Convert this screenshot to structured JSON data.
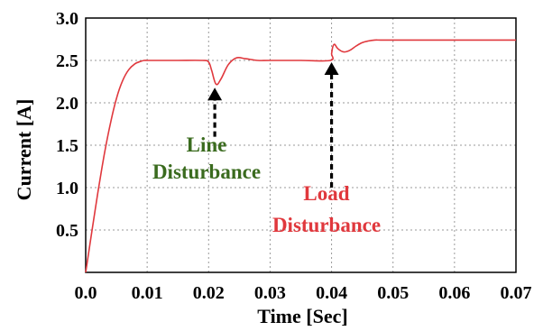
{
  "chart_data": {
    "type": "line",
    "xlabel": "Time [Sec]",
    "ylabel": "Current [A]",
    "xlim": [
      0,
      0.07
    ],
    "ylim": [
      0,
      3.0
    ],
    "xticks": [
      "0.0",
      "0.01",
      "0.02",
      "0.03",
      "0.04",
      "0.05",
      "0.06",
      "0.07"
    ],
    "yticks": [
      "0.5",
      "1.0",
      "1.5",
      "2.0",
      "2.5",
      "3.0"
    ],
    "grid": true,
    "line_color": "#e0383d",
    "series": [
      {
        "x": [
          0,
          0.001,
          0.002,
          0.003,
          0.004,
          0.005,
          0.006,
          0.007,
          0.008,
          0.009,
          0.0095,
          0.01,
          0.011,
          0.012,
          0.015,
          0.019,
          0.02,
          0.0205,
          0.0212,
          0.022,
          0.0232,
          0.0245,
          0.026,
          0.028,
          0.03,
          0.035,
          0.0398,
          0.04,
          0.0402,
          0.0405,
          0.041,
          0.042,
          0.043,
          0.044,
          0.045,
          0.046,
          0.047,
          0.048,
          0.05,
          0.06,
          0.07
        ],
        "values": [
          0.0,
          0.48,
          0.95,
          1.38,
          1.75,
          2.05,
          2.26,
          2.39,
          2.46,
          2.49,
          2.5,
          2.5,
          2.5,
          2.5,
          2.5,
          2.5,
          2.48,
          2.38,
          2.22,
          2.28,
          2.45,
          2.53,
          2.52,
          2.5,
          2.5,
          2.5,
          2.5,
          2.58,
          2.66,
          2.69,
          2.64,
          2.6,
          2.62,
          2.67,
          2.71,
          2.73,
          2.74,
          2.74,
          2.74,
          2.74,
          2.74
        ]
      }
    ],
    "annotations": [
      {
        "text_lines": [
          "Line",
          "Disturbance"
        ],
        "color": "#3a6b1e",
        "x": 0.021,
        "arrow_to_y": 2.2,
        "arrow_from_y": 1.6
      },
      {
        "text_lines": [
          "Load",
          "Disturbance"
        ],
        "color": "#e0383d",
        "x": 0.04,
        "arrow_to_y": 2.5,
        "arrow_from_y": 1.0
      }
    ]
  }
}
